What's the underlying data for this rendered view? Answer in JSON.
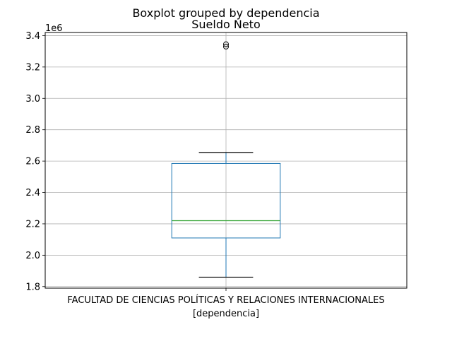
{
  "chart_data": {
    "type": "boxplot",
    "suptitle": "Boxplot grouped by dependencia",
    "title": "Sueldo Neto",
    "xlabel": "[dependencia]",
    "ylabel": "",
    "y_offset_label": "1e6",
    "y_scale": 1000000,
    "ylim": [
      1790000,
      3420000
    ],
    "yticks": [
      1800000,
      2000000,
      2200000,
      2400000,
      2600000,
      2800000,
      3000000,
      3200000,
      3400000
    ],
    "ytick_labels": [
      "1.8",
      "2.0",
      "2.2",
      "2.4",
      "2.6",
      "2.8",
      "3.0",
      "3.2",
      "3.4"
    ],
    "grid": true,
    "categories": [
      "FACULTAD DE CIENCIAS POLÍTICAS Y RELACIONES INTERNACIONALES"
    ],
    "boxes": [
      {
        "category": "FACULTAD DE CIENCIAS POLÍTICAS Y RELACIONES INTERNACIONALES",
        "whisker_low": 1860000,
        "q1": 2110000,
        "median": 2220000,
        "q3": 2585000,
        "whisker_high": 2655000,
        "outliers": [
          3330000,
          3345000
        ]
      }
    ],
    "colors": {
      "box": "#1f77b4",
      "median": "#2ca02c",
      "whisker": "#1f77b4",
      "cap": "#000000",
      "grid": "#b0b0b0",
      "outlier": "#000000"
    }
  }
}
